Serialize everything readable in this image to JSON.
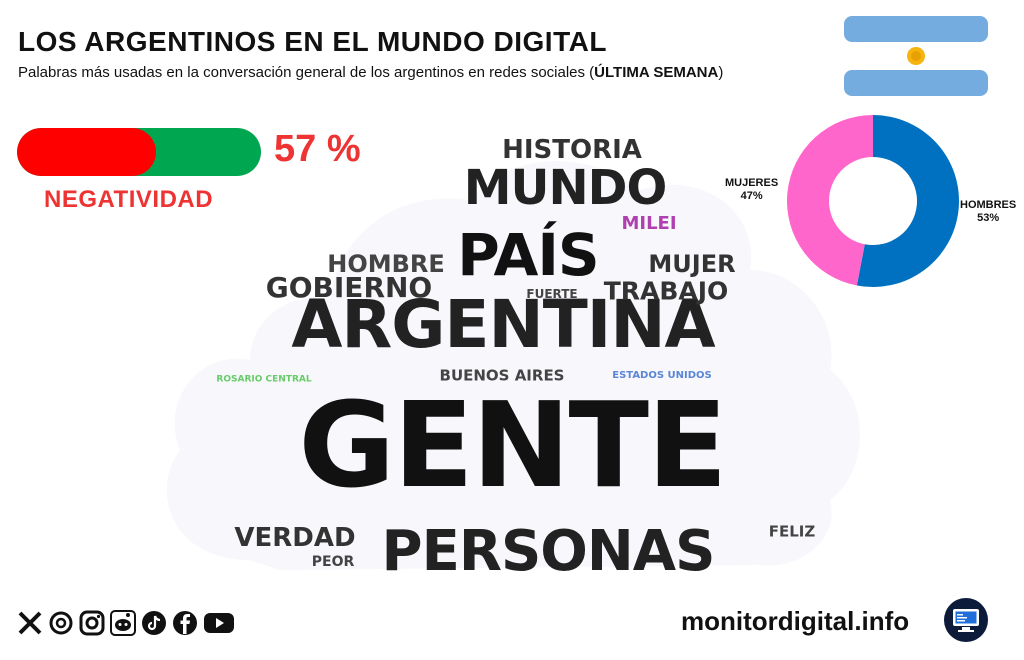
{
  "header": {
    "title": "LOS ARGENTINOS EN EL MUNDO DIGITAL",
    "subtitle_prefix": "Palabras más usadas en la conversación general de los argentinos en redes sociales (",
    "subtitle_bold": "ÚLTIMA SEMANA",
    "subtitle_suffix": ")"
  },
  "negativity": {
    "value": 57,
    "value_label": "57 %",
    "label": "NEGATIVIDAD",
    "negative_color": "#ff0000",
    "positive_color": "#00a650"
  },
  "chart_data": [
    {
      "type": "pie",
      "title": "",
      "labels": [
        "MUJERES",
        "HOMBRES"
      ],
      "values": [
        47,
        53
      ],
      "value_labels": [
        "47%",
        "53%"
      ],
      "colors": [
        "#ff66cc",
        "#0070c0"
      ],
      "donut": true
    },
    {
      "type": "wordcloud",
      "title": "",
      "words": [
        {
          "text": "GENTE",
          "rank": 1,
          "color": "#111111"
        },
        {
          "text": "ARGENTINA",
          "rank": 2,
          "color": "#222222"
        },
        {
          "text": "PERSONAS",
          "rank": 3,
          "color": "#222222"
        },
        {
          "text": "PAÍS",
          "rank": 4,
          "color": "#111111"
        },
        {
          "text": "MUNDO",
          "rank": 5,
          "color": "#222222"
        },
        {
          "text": "HISTORIA",
          "rank": 6,
          "color": "#333333"
        },
        {
          "text": "GOBIERNO",
          "rank": 7,
          "color": "#333333"
        },
        {
          "text": "VERDAD",
          "rank": 8,
          "color": "#333333"
        },
        {
          "text": "TRABAJO",
          "rank": 9,
          "color": "#333333"
        },
        {
          "text": "HOMBRE",
          "rank": 10,
          "color": "#444444"
        },
        {
          "text": "MUJER",
          "rank": 11,
          "color": "#333333"
        },
        {
          "text": "MILEI",
          "rank": 12,
          "color": "#b040b0"
        },
        {
          "text": "BUENOS AIRES",
          "rank": 13,
          "color": "#444444"
        },
        {
          "text": "FELIZ",
          "rank": 14,
          "color": "#444444"
        },
        {
          "text": "PEOR",
          "rank": 15,
          "color": "#444444"
        },
        {
          "text": "FUERTE",
          "rank": 16,
          "color": "#444444"
        },
        {
          "text": "ESTADOS UNIDOS",
          "rank": 17,
          "color": "#5b86d6"
        },
        {
          "text": "ROSARIO CENTRAL",
          "rank": 18,
          "color": "#66cc66"
        }
      ]
    }
  ],
  "footer": {
    "site": "monitordigital.info",
    "social_icons": [
      "x-icon",
      "threads-icon",
      "instagram-icon",
      "reddit-icon",
      "tiktok-icon",
      "facebook-icon",
      "youtube-icon"
    ]
  }
}
